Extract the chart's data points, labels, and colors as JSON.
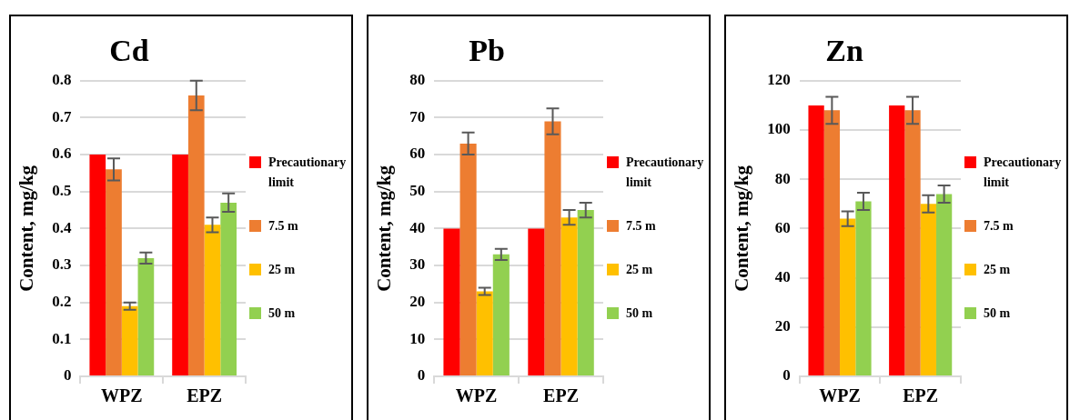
{
  "chart_data": [
    {
      "type": "bar",
      "title": "Cd",
      "ylabel": "Content, mg/kg",
      "categories": [
        "WPZ",
        "EPZ"
      ],
      "ylim": [
        0,
        0.8
      ],
      "yticks": [
        0,
        0.1,
        0.2,
        0.3,
        0.4,
        0.5,
        0.6,
        0.7,
        0.8
      ],
      "grid": "y",
      "legend": "right",
      "series": [
        {
          "name": "Precautionary limit",
          "color": "#ff0000",
          "values": [
            0.6,
            0.6
          ]
        },
        {
          "name": "7.5 m",
          "color": "#ed7d31",
          "values": [
            0.56,
            0.76
          ],
          "errors": [
            0.03,
            0.04
          ]
        },
        {
          "name": "25 m",
          "color": "#ffc000",
          "values": [
            0.19,
            0.41
          ],
          "errors": [
            0.01,
            0.02
          ]
        },
        {
          "name": "50 m",
          "color": "#92d050",
          "values": [
            0.32,
            0.47
          ],
          "errors": [
            0.015,
            0.025
          ]
        }
      ]
    },
    {
      "type": "bar",
      "title": "Pb",
      "ylabel": "Content, mg/kg",
      "categories": [
        "WPZ",
        "EPZ"
      ],
      "ylim": [
        0,
        80
      ],
      "yticks": [
        0,
        10,
        20,
        30,
        40,
        50,
        60,
        70,
        80
      ],
      "grid": "y",
      "legend": "right",
      "series": [
        {
          "name": "Precautionary limit",
          "color": "#ff0000",
          "values": [
            40,
            40
          ]
        },
        {
          "name": "7.5 m",
          "color": "#ed7d31",
          "values": [
            63,
            69
          ],
          "errors": [
            3,
            3.5
          ]
        },
        {
          "name": "25 m",
          "color": "#ffc000",
          "values": [
            23,
            43
          ],
          "errors": [
            1,
            2
          ]
        },
        {
          "name": "50 m",
          "color": "#92d050",
          "values": [
            33,
            45
          ],
          "errors": [
            1.5,
            2
          ]
        }
      ]
    },
    {
      "type": "bar",
      "title": "Zn",
      "ylabel": "Content, mg/kg",
      "categories": [
        "WPZ",
        "EPZ"
      ],
      "ylim": [
        0,
        120
      ],
      "yticks": [
        0,
        20,
        40,
        60,
        80,
        100,
        120
      ],
      "grid": "y",
      "legend": "right",
      "series": [
        {
          "name": "Precautionary limit",
          "color": "#ff0000",
          "values": [
            110,
            110
          ]
        },
        {
          "name": "7.5 m",
          "color": "#ed7d31",
          "values": [
            108,
            108
          ],
          "errors": [
            5.5,
            5.5
          ]
        },
        {
          "name": "25 m",
          "color": "#ffc000",
          "values": [
            64,
            70
          ],
          "errors": [
            3,
            3.5
          ]
        },
        {
          "name": "50 m",
          "color": "#92d050",
          "values": [
            71,
            74
          ],
          "errors": [
            3.5,
            3.5
          ]
        }
      ]
    }
  ]
}
